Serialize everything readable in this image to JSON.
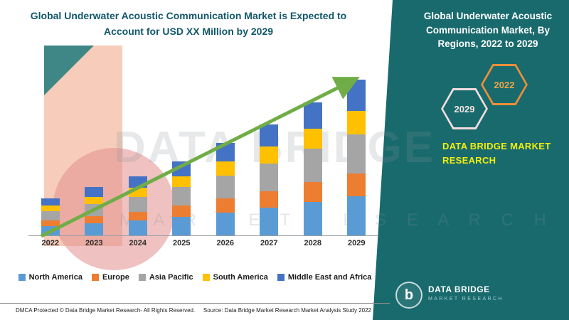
{
  "page": {
    "left_title": "Global Underwater Acoustic Communication Market is Expected to Account for USD XX Million by 2029",
    "footer": {
      "dmca": "DMCA Protected © Data Bridge Market Research- All Rights Reserved.",
      "source": "Source: Data Bridge Market Research Market Analysis Study 2022"
    }
  },
  "right_panel": {
    "title": "Global Underwater Acoustic Communication Market, By Regions, 2022 to 2029",
    "hex_start_year": "2022",
    "hex_end_year": "2029",
    "brand_text": "DATA BRIDGE MARKET RESEARCH",
    "logo": {
      "letter": "b",
      "name": "DATA BRIDGE",
      "tagline": "MARKET RESEARCH"
    },
    "colors": {
      "panel": "#186a6d",
      "accent_yellow": "#f2ee0e",
      "hex_2022_outline": "#ee8f3a",
      "hex_2029_outline": "#f2dcdc"
    }
  },
  "watermark": {
    "text": "DATA BRIDGE",
    "subtext": "M A R K E T   R E S E A R C H"
  },
  "chart_data": {
    "type": "bar",
    "stacked": true,
    "title": "Global Underwater Acoustic Communication Market is Expected to Account for USD XX Million by 2029",
    "categories": [
      "2022",
      "2023",
      "2024",
      "2025",
      "2026",
      "2027",
      "2028",
      "2029"
    ],
    "series": [
      {
        "name": "North America",
        "color": "#5B9BD5",
        "values": [
          2.5,
          3.2,
          4.0,
          5.0,
          6.2,
          7.5,
          9.0,
          10.5
        ]
      },
      {
        "name": "Europe",
        "color": "#ED7D31",
        "values": [
          1.5,
          2.0,
          2.4,
          3.0,
          3.8,
          4.5,
          5.4,
          6.3
        ]
      },
      {
        "name": "Asia Pacific",
        "color": "#A5A5A5",
        "values": [
          2.5,
          3.2,
          4.0,
          5.0,
          6.2,
          7.5,
          9.0,
          10.5
        ]
      },
      {
        "name": "South America",
        "color": "#FFC000",
        "values": [
          1.5,
          2.0,
          2.4,
          3.0,
          3.8,
          4.5,
          5.4,
          6.3
        ]
      },
      {
        "name": "Middle East and Africa",
        "color": "#4472C4",
        "values": [
          2.0,
          2.6,
          3.2,
          4.0,
          5.0,
          6.0,
          7.2,
          8.4
        ]
      }
    ],
    "xlabel": "",
    "ylabel": "",
    "units": "relative (no y-axis values shown, labeled as USD XX Million)",
    "legend_position": "bottom",
    "grid": false,
    "annotations": [
      "upward green trend arrow from 2022 to 2029"
    ],
    "trend_arrow_color": "#70AD47"
  }
}
